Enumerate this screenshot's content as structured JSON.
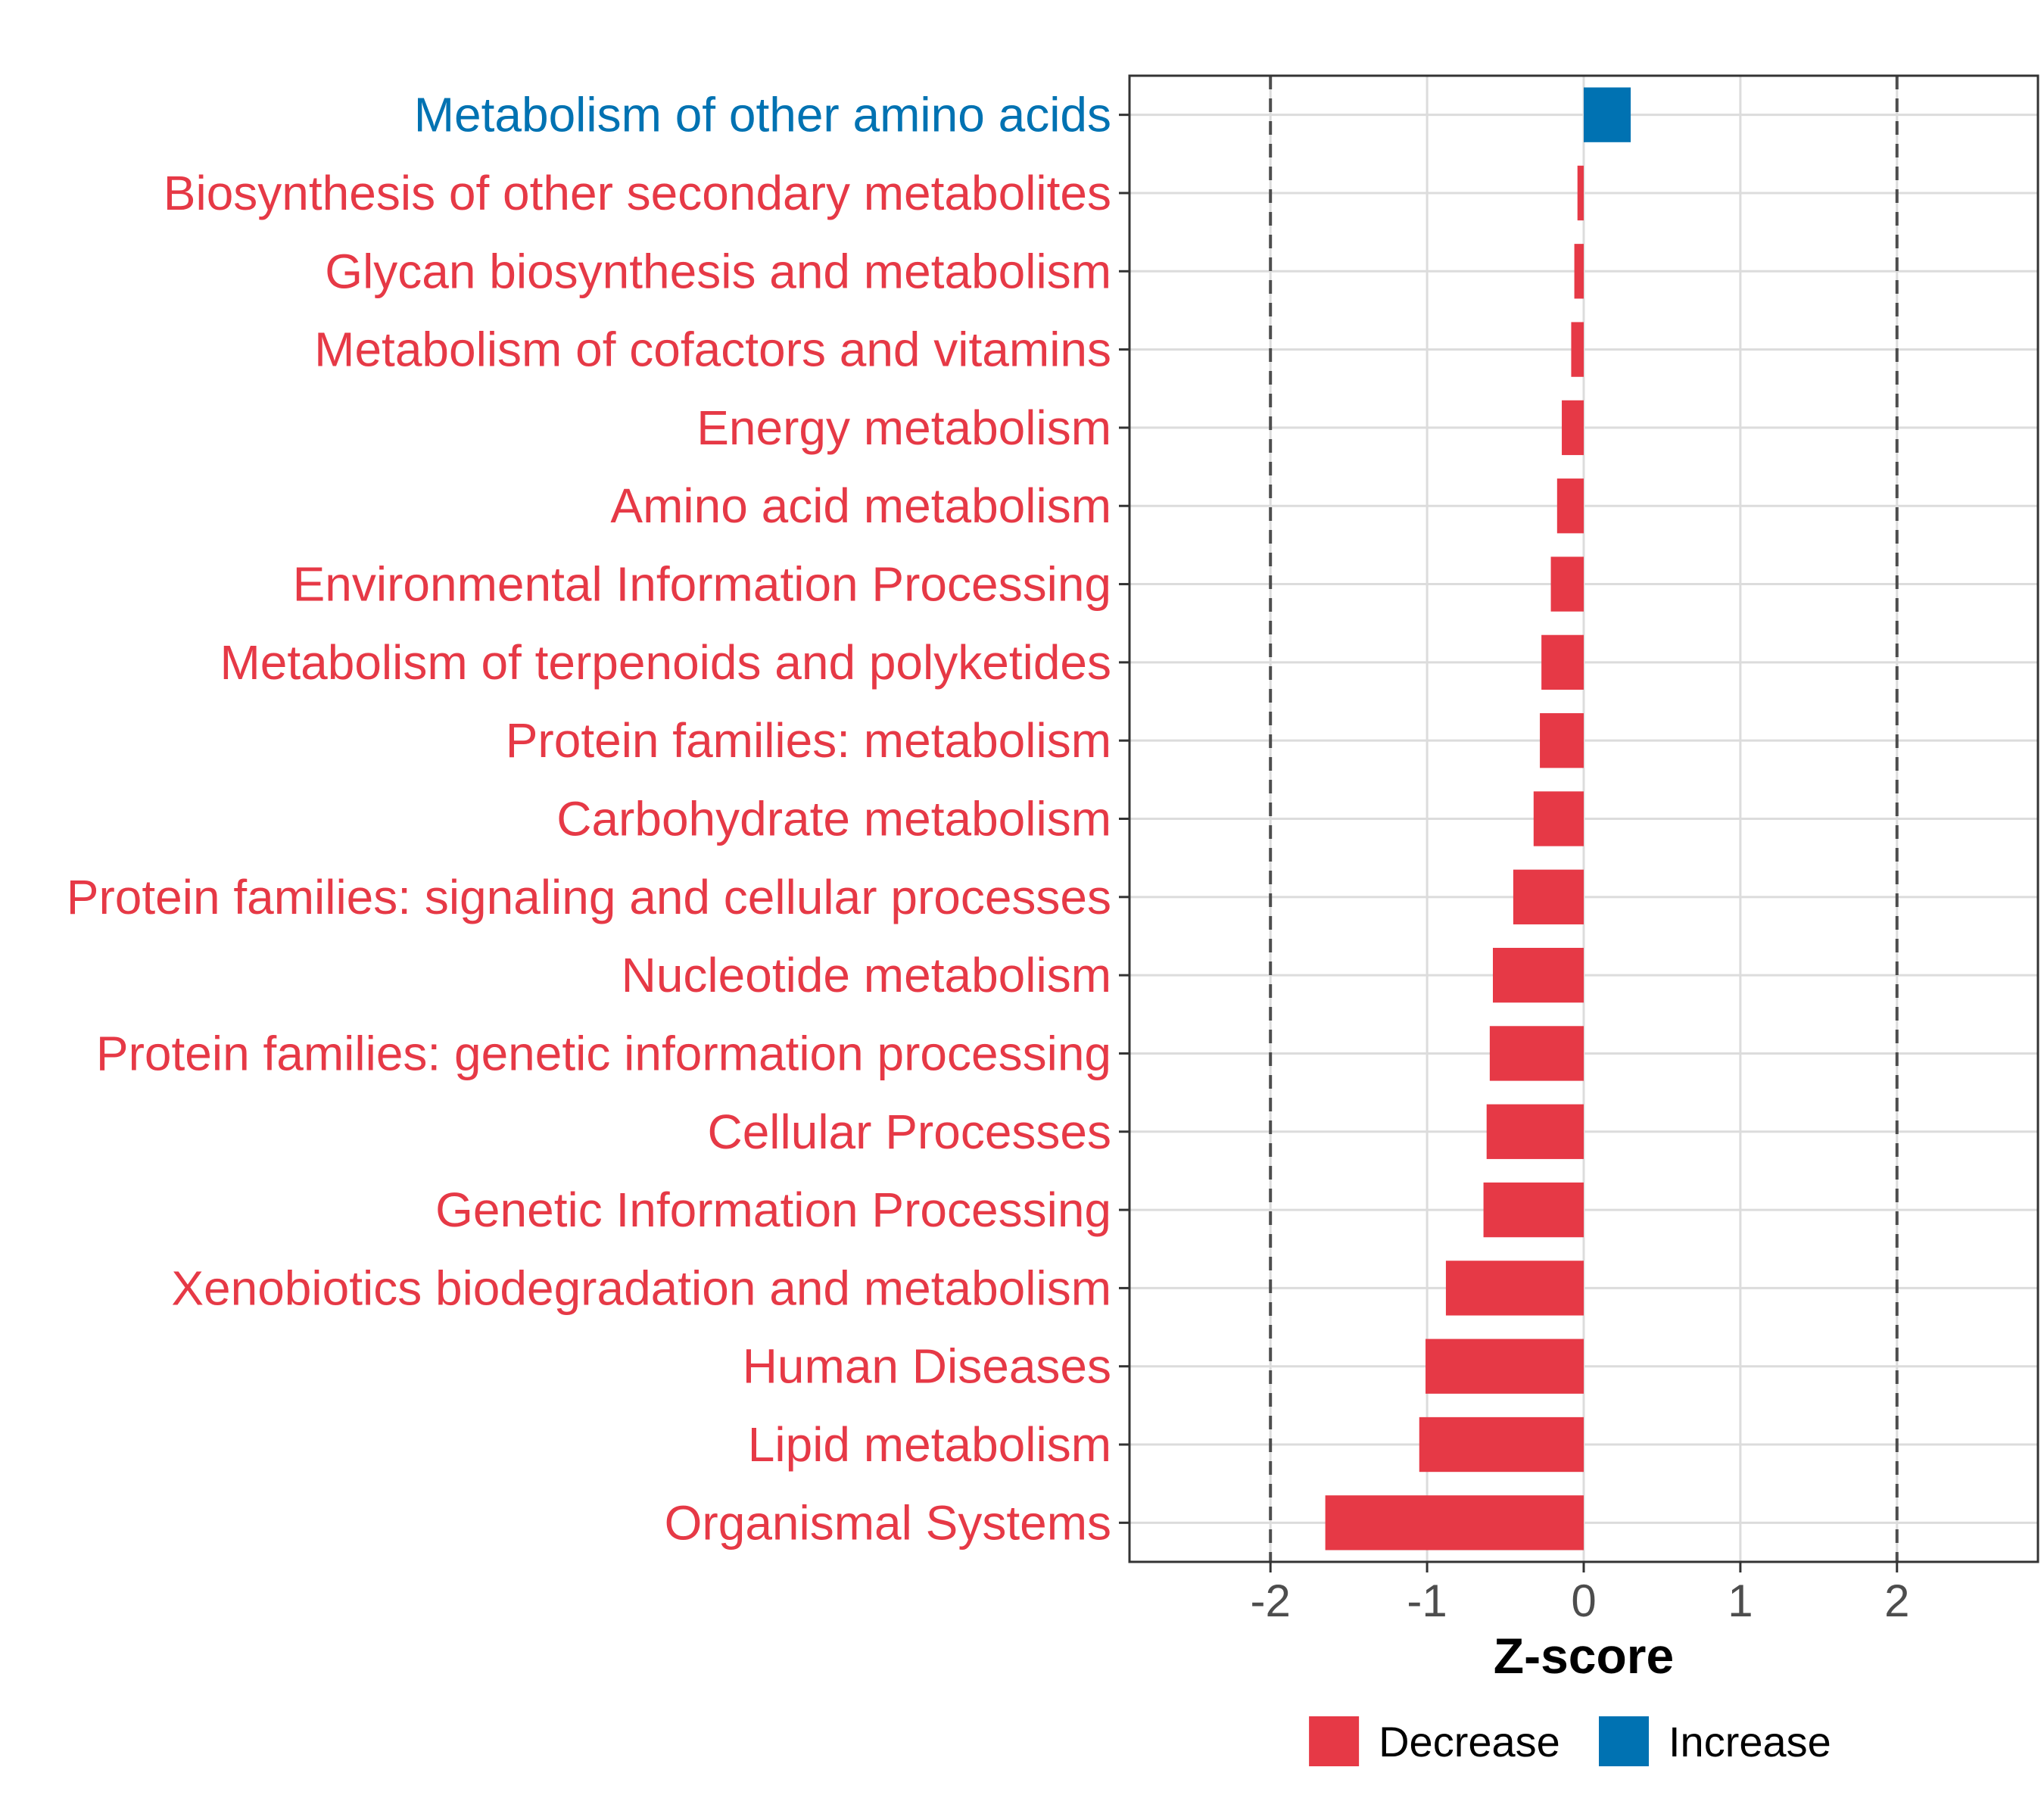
{
  "chart_data": {
    "type": "bar",
    "orientation": "horizontal",
    "xlabel": "Z-score",
    "ylabel": "",
    "xlim": [
      -2.9,
      2.9
    ],
    "xticks": [
      -2,
      -1,
      0,
      1,
      2
    ],
    "tick_labels": [
      "-2",
      "-1",
      "0",
      "1",
      "2"
    ],
    "reference_lines": [
      -2,
      2
    ],
    "grid": true,
    "legend_position": "bottom",
    "categories": [
      "Metabolism of other amino acids",
      "Biosynthesis of other secondary metabolites",
      "Glycan biosynthesis and metabolism",
      "Metabolism of cofactors and vitamins",
      "Energy metabolism",
      "Amino acid metabolism",
      "Environmental Information Processing",
      "Metabolism of terpenoids and polyketides",
      "Protein families: metabolism",
      "Carbohydrate metabolism",
      "Protein families: signaling and cellular processes",
      "Nucleotide metabolism",
      "Protein families: genetic information processing",
      "Cellular Processes",
      "Genetic Information Processing",
      "Xenobiotics biodegradation and metabolism",
      "Human Diseases",
      "Lipid metabolism",
      "Organismal Systems"
    ],
    "values": [
      0.3,
      -0.04,
      -0.06,
      -0.08,
      -0.14,
      -0.17,
      -0.21,
      -0.27,
      -0.28,
      -0.32,
      -0.45,
      -0.58,
      -0.6,
      -0.62,
      -0.64,
      -0.88,
      -1.01,
      -1.05,
      -1.65
    ],
    "groups": [
      "Increase",
      "Decrease",
      "Decrease",
      "Decrease",
      "Decrease",
      "Decrease",
      "Decrease",
      "Decrease",
      "Decrease",
      "Decrease",
      "Decrease",
      "Decrease",
      "Decrease",
      "Decrease",
      "Decrease",
      "Decrease",
      "Decrease",
      "Decrease",
      "Decrease"
    ],
    "legend": [
      {
        "label": "Decrease",
        "color": "#e63946"
      },
      {
        "label": "Increase",
        "color": "#0072b2"
      }
    ]
  }
}
